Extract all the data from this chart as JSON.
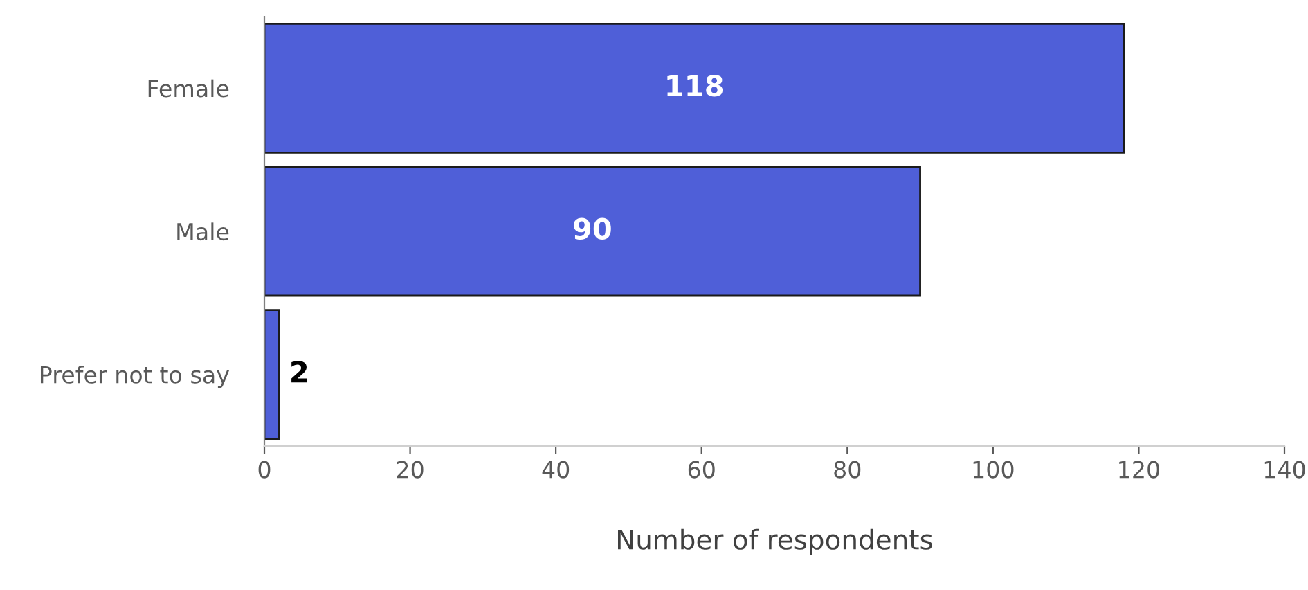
{
  "chart_data": {
    "type": "bar",
    "orientation": "horizontal",
    "xlabel": "Number of respondents",
    "categories": [
      "Female",
      "Male",
      "Prefer not to say"
    ],
    "values": [
      118,
      90,
      2
    ],
    "color": "#4f5fd8",
    "xlim": [
      0,
      140
    ],
    "xticks": [
      0,
      20,
      40,
      60,
      80,
      100,
      120,
      140
    ],
    "data_labels": true,
    "grid": false
  }
}
